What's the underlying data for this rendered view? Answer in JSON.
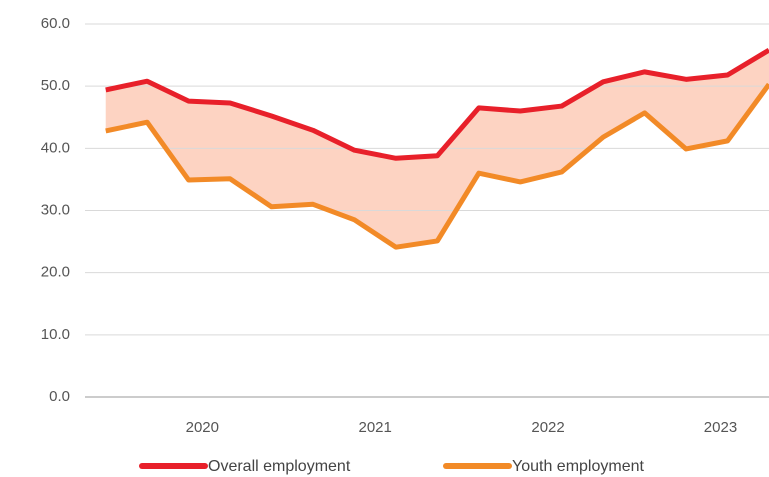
{
  "chart_data": {
    "type": "line",
    "x": [
      0,
      1,
      2,
      3,
      4,
      5,
      6,
      7,
      8,
      9,
      10,
      11,
      12,
      13,
      14,
      15,
      16
    ],
    "xlim": [
      -0.5,
      16
    ],
    "xticks": [
      {
        "value": 2.33,
        "label": "2020"
      },
      {
        "value": 6.5,
        "label": "2021"
      },
      {
        "value": 10.67,
        "label": "2022"
      },
      {
        "value": 14.83,
        "label": "2023"
      }
    ],
    "ylim": [
      0,
      60
    ],
    "yticks": [
      {
        "value": 0,
        "label": "0.0"
      },
      {
        "value": 10,
        "label": "10.0"
      },
      {
        "value": 20,
        "label": "20.0"
      },
      {
        "value": 30,
        "label": "30.0"
      },
      {
        "value": 40,
        "label": "40.0"
      },
      {
        "value": 50,
        "label": "50.0"
      },
      {
        "value": 60,
        "label": "60.0"
      }
    ],
    "grid": true,
    "band_color": "#fdd3c2",
    "legend": "bottom",
    "series": [
      {
        "name": "Overall employment",
        "color": "#e8202a",
        "values": [
          49.4,
          50.8,
          47.6,
          47.3,
          45.2,
          42.9,
          39.7,
          38.4,
          38.8,
          46.5,
          46.0,
          46.8,
          50.7,
          52.3,
          51.1,
          51.8,
          55.8
        ]
      },
      {
        "name": "Youth employment",
        "color": "#f28a27",
        "values": [
          42.8,
          44.2,
          34.9,
          35.1,
          30.6,
          31.0,
          28.5,
          24.1,
          25.1,
          36.0,
          34.6,
          36.2,
          41.8,
          45.7,
          39.9,
          41.2,
          50.3
        ]
      }
    ]
  }
}
